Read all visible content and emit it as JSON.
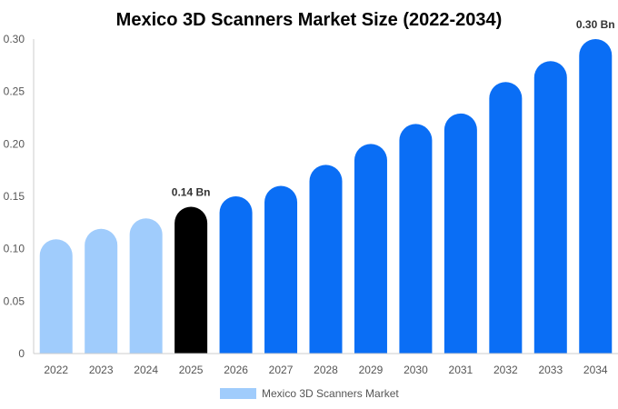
{
  "chart_data": {
    "type": "bar",
    "title": "Mexico 3D Scanners Market Size (2022-2034)",
    "categories": [
      "2022",
      "2023",
      "2024",
      "2025",
      "2026",
      "2027",
      "2028",
      "2029",
      "2030",
      "2031",
      "2032",
      "2033",
      "2034"
    ],
    "series": [
      {
        "name": "Mexico 3D Scanners Market",
        "values": [
          0.109,
          0.119,
          0.129,
          0.14,
          0.15,
          0.16,
          0.18,
          0.2,
          0.219,
          0.229,
          0.259,
          0.279,
          0.3
        ]
      }
    ],
    "bar_colors": [
      "#a0ccfc",
      "#a0ccfc",
      "#a0ccfc",
      "#000000",
      "#0a6ef5",
      "#0a6ef5",
      "#0a6ef5",
      "#0a6ef5",
      "#0a6ef5",
      "#0a6ef5",
      "#0a6ef5",
      "#0a6ef5",
      "#0a6ef5"
    ],
    "data_labels": [
      {
        "category": "2025",
        "text": "0.14 Bn"
      },
      {
        "category": "2034",
        "text": "0.30 Bn"
      }
    ],
    "y_ticks": [
      "0",
      "0.05",
      "0.10",
      "0.15",
      "0.20",
      "0.25",
      "0.30"
    ],
    "ylim": [
      0,
      0.3
    ],
    "xlabel": "",
    "ylabel": "",
    "grid": false,
    "legend": {
      "placement": "bottom",
      "label": "Mexico 3D Scanners Market",
      "color": "#a0ccfc"
    }
  }
}
